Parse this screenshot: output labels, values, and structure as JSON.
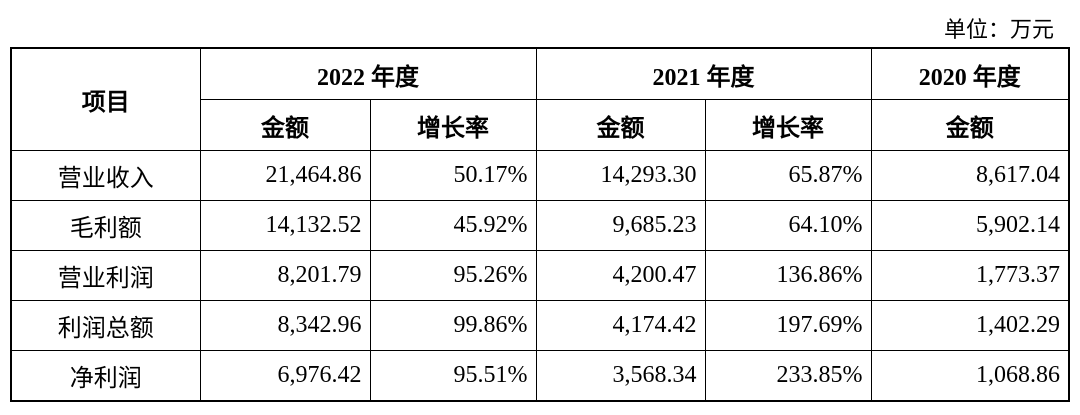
{
  "unit": "单位：万元",
  "table": {
    "header": {
      "item": "项目",
      "years": [
        "2022 年度",
        "2021 年度",
        "2020 年度"
      ],
      "amount": "金额",
      "growth": "增长率"
    },
    "rows": [
      [
        "营业收入",
        "21,464.86",
        "50.17%",
        "14,293.30",
        "65.87%",
        "8,617.04"
      ],
      [
        "毛利额",
        "14,132.52",
        "45.92%",
        "9,685.23",
        "64.10%",
        "5,902.14"
      ],
      [
        "营业利润",
        "8,201.79",
        "95.26%",
        "4,200.47",
        "136.86%",
        "1,773.37"
      ],
      [
        "利润总额",
        "8,342.96",
        "99.86%",
        "4,174.42",
        "197.69%",
        "1,402.29"
      ],
      [
        "净利润",
        "6,976.42",
        "95.51%",
        "3,568.34",
        "233.85%",
        "1,068.86"
      ]
    ]
  }
}
